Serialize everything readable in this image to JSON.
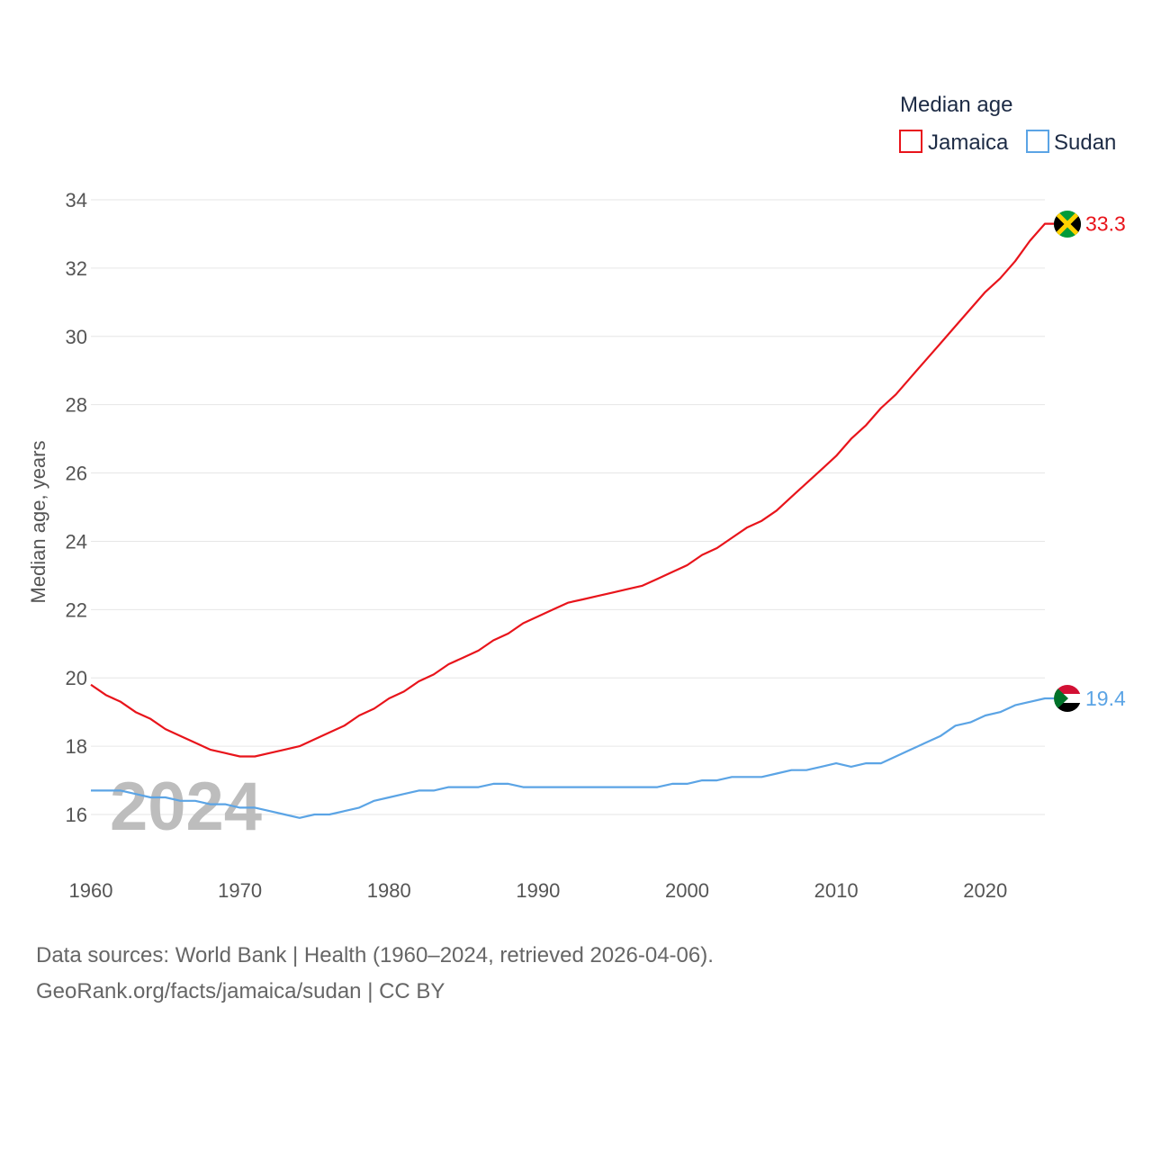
{
  "chart_data": {
    "type": "line",
    "title": "",
    "legend_title": "Median age",
    "xlabel": "",
    "ylabel": "Median age, years",
    "xlim": [
      1960,
      2024
    ],
    "ylim": [
      14.6,
      34.6
    ],
    "x_ticks": [
      1960,
      1970,
      1980,
      1990,
      2000,
      2010,
      2020
    ],
    "y_ticks": [
      16,
      18,
      20,
      22,
      24,
      26,
      28,
      30,
      32,
      34
    ],
    "grid": true,
    "legend_position": "top-right",
    "year_watermark": "2024",
    "x": [
      1960,
      1961,
      1962,
      1963,
      1964,
      1965,
      1966,
      1967,
      1968,
      1969,
      1970,
      1971,
      1972,
      1973,
      1974,
      1975,
      1976,
      1977,
      1978,
      1979,
      1980,
      1981,
      1982,
      1983,
      1984,
      1985,
      1986,
      1987,
      1988,
      1989,
      1990,
      1991,
      1992,
      1993,
      1994,
      1995,
      1996,
      1997,
      1998,
      1999,
      2000,
      2001,
      2002,
      2003,
      2004,
      2005,
      2006,
      2007,
      2008,
      2009,
      2010,
      2011,
      2012,
      2013,
      2014,
      2015,
      2016,
      2017,
      2018,
      2019,
      2020,
      2021,
      2022,
      2023,
      2024
    ],
    "series": [
      {
        "name": "Jamaica",
        "color": "#e8141b",
        "end_label": "33.3",
        "flag": "jamaica-flag-icon",
        "values": [
          19.8,
          19.5,
          19.3,
          19.0,
          18.8,
          18.5,
          18.3,
          18.1,
          17.9,
          17.8,
          17.7,
          17.7,
          17.8,
          17.9,
          18.0,
          18.2,
          18.4,
          18.6,
          18.9,
          19.1,
          19.4,
          19.6,
          19.9,
          20.1,
          20.4,
          20.6,
          20.8,
          21.1,
          21.3,
          21.6,
          21.8,
          22.0,
          22.2,
          22.3,
          22.4,
          22.5,
          22.6,
          22.7,
          22.9,
          23.1,
          23.3,
          23.6,
          23.8,
          24.1,
          24.4,
          24.6,
          24.9,
          25.3,
          25.7,
          26.1,
          26.5,
          27.0,
          27.4,
          27.9,
          28.3,
          28.8,
          29.3,
          29.8,
          30.3,
          30.8,
          31.3,
          31.7,
          32.2,
          32.8,
          33.3
        ]
      },
      {
        "name": "Sudan",
        "color": "#5ba4e5",
        "end_label": "19.4",
        "flag": "sudan-flag-icon",
        "values": [
          16.7,
          16.7,
          16.7,
          16.6,
          16.5,
          16.5,
          16.4,
          16.4,
          16.3,
          16.3,
          16.2,
          16.2,
          16.1,
          16.0,
          15.9,
          16.0,
          16.0,
          16.1,
          16.2,
          16.4,
          16.5,
          16.6,
          16.7,
          16.7,
          16.8,
          16.8,
          16.8,
          16.9,
          16.9,
          16.8,
          16.8,
          16.8,
          16.8,
          16.8,
          16.8,
          16.8,
          16.8,
          16.8,
          16.8,
          16.9,
          16.9,
          17.0,
          17.0,
          17.1,
          17.1,
          17.1,
          17.2,
          17.3,
          17.3,
          17.4,
          17.5,
          17.4,
          17.5,
          17.5,
          17.7,
          17.9,
          18.1,
          18.3,
          18.6,
          18.7,
          18.9,
          19.0,
          19.2,
          19.3,
          19.4
        ]
      }
    ]
  },
  "footer": {
    "line1": "Data sources: World Bank | Health (1960–2024, retrieved 2026-04-06).",
    "line2": "GeoRank.org/facts/jamaica/sudan | CC BY"
  }
}
